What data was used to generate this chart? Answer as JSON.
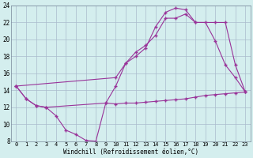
{
  "xlabel": "Windchill (Refroidissement éolien,°C)",
  "bg_color": "#d4eeee",
  "grid_color": "#aabbcc",
  "line_color": "#993399",
  "xlim": [
    -0.5,
    23.5
  ],
  "ylim": [
    8,
    24
  ],
  "yticks": [
    8,
    10,
    12,
    14,
    16,
    18,
    20,
    22,
    24
  ],
  "xticks": [
    0,
    1,
    2,
    3,
    4,
    5,
    6,
    7,
    8,
    9,
    10,
    11,
    12,
    13,
    14,
    15,
    16,
    17,
    18,
    19,
    20,
    21,
    22,
    23
  ],
  "line1_x": [
    0,
    1,
    2,
    3,
    4,
    5,
    6,
    7,
    8,
    9,
    10,
    11,
    12,
    13,
    14,
    15,
    16,
    17,
    18,
    19,
    20,
    21,
    22,
    23
  ],
  "line1_y": [
    14.5,
    13.0,
    12.2,
    12.0,
    11.0,
    9.3,
    8.8,
    8.1,
    8.0,
    12.5,
    12.4,
    12.5,
    12.5,
    12.6,
    12.7,
    12.8,
    12.9,
    13.0,
    13.2,
    13.4,
    13.5,
    13.6,
    13.7,
    13.8
  ],
  "line2_x": [
    0,
    1,
    2,
    3,
    9,
    10,
    11,
    12,
    13,
    14,
    15,
    16,
    17,
    18,
    19,
    20,
    21,
    22,
    23
  ],
  "line2_y": [
    14.5,
    13.0,
    12.2,
    12.0,
    12.5,
    14.5,
    17.2,
    18.5,
    19.3,
    20.5,
    22.5,
    22.5,
    23.0,
    22.0,
    22.0,
    19.8,
    17.0,
    15.5,
    13.8
  ],
  "line3_x": [
    0,
    10,
    11,
    12,
    13,
    14,
    15,
    16,
    17,
    18,
    20,
    21,
    22,
    23
  ],
  "line3_y": [
    14.5,
    15.5,
    17.2,
    18.0,
    19.0,
    21.5,
    23.2,
    23.7,
    23.5,
    22.0,
    22.0,
    22.0,
    17.0,
    13.8
  ]
}
